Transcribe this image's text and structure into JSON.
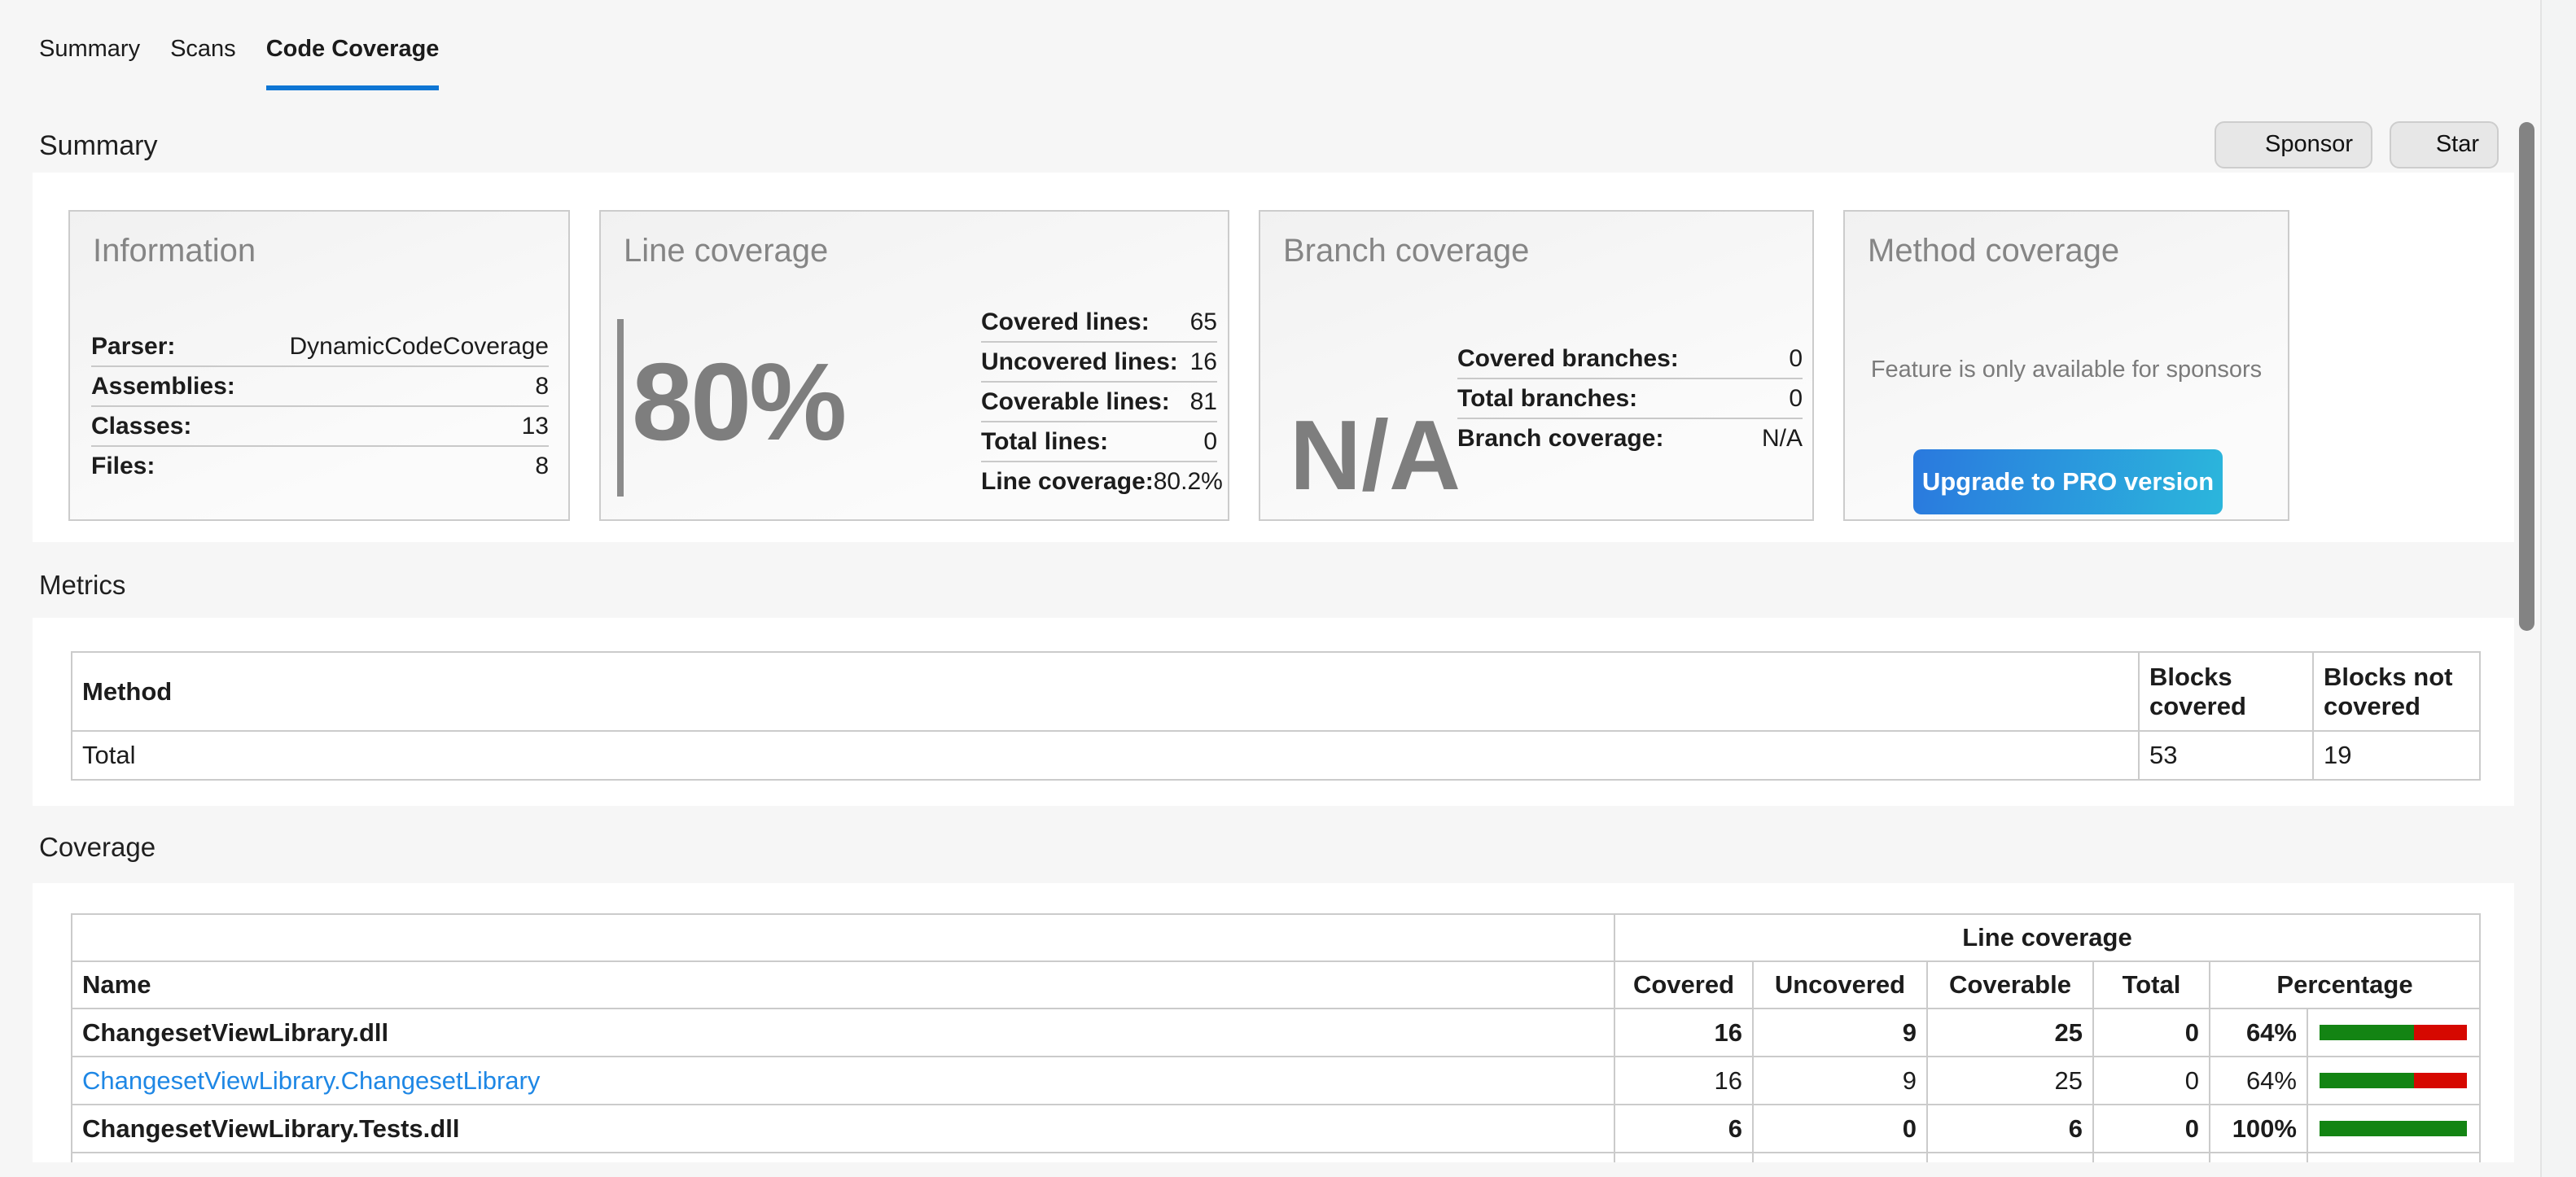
{
  "tabs": {
    "items": [
      {
        "label": "Summary",
        "active": false
      },
      {
        "label": "Scans",
        "active": false
      },
      {
        "label": "Code Coverage",
        "active": true
      }
    ]
  },
  "toolbar": {
    "title": "Summary",
    "sponsor_label": "Sponsor",
    "star_label": "Star"
  },
  "cards": {
    "information": {
      "title": "Information",
      "rows": [
        {
          "label": "Parser:",
          "value": "DynamicCodeCoverage"
        },
        {
          "label": "Assemblies:",
          "value": "8"
        },
        {
          "label": "Classes:",
          "value": "13"
        },
        {
          "label": "Files:",
          "value": "8"
        }
      ]
    },
    "line_coverage": {
      "title": "Line coverage",
      "big_value": "80%",
      "rows": [
        {
          "label": "Covered lines:",
          "value": "65"
        },
        {
          "label": "Uncovered lines:",
          "value": "16"
        },
        {
          "label": "Coverable lines:",
          "value": "81"
        },
        {
          "label": "Total lines:",
          "value": "0"
        },
        {
          "label": "Line coverage:",
          "value": "80.2%"
        }
      ]
    },
    "branch_coverage": {
      "title": "Branch coverage",
      "big_value": "N/A",
      "rows": [
        {
          "label": "Covered branches:",
          "value": "0"
        },
        {
          "label": "Total branches:",
          "value": "0"
        },
        {
          "label": "Branch coverage:",
          "value": "N/A"
        }
      ]
    },
    "method_coverage": {
      "title": "Method coverage",
      "note": "Feature is only available for sponsors",
      "upgrade_label": "Upgrade to PRO version"
    }
  },
  "metrics": {
    "heading": "Metrics",
    "columns": [
      "Method",
      "Blocks covered",
      "Blocks not covered"
    ],
    "rows": [
      {
        "method": "Total",
        "blocks_covered": "53",
        "blocks_not_covered": "19"
      }
    ]
  },
  "coverage": {
    "heading": "Coverage",
    "group_header": "Line coverage",
    "columns": [
      "Name",
      "Covered",
      "Uncovered",
      "Coverable",
      "Total",
      "Percentage"
    ],
    "rows": [
      {
        "name": "ChangesetViewLibrary.dll",
        "bold": true,
        "link": false,
        "covered": "16",
        "uncovered": "9",
        "coverable": "25",
        "total": "0",
        "percentage": "64%",
        "percent": 64
      },
      {
        "name": "ChangesetViewLibrary.ChangesetLibrary",
        "bold": false,
        "link": true,
        "covered": "16",
        "uncovered": "9",
        "coverable": "25",
        "total": "0",
        "percentage": "64%",
        "percent": 64
      },
      {
        "name": "ChangesetViewLibrary.Tests.dll",
        "bold": true,
        "link": false,
        "covered": "6",
        "uncovered": "0",
        "coverable": "6",
        "total": "0",
        "percentage": "100%",
        "percent": 100
      }
    ]
  },
  "colors": {
    "accent_blue": "#0e76d4",
    "link_blue": "#1e87e5",
    "bar_green": "#138413",
    "bar_red": "#d60800",
    "button_gradient_start": "#2a79de",
    "button_gradient_end": "#2bb6dc",
    "big_number_gray": "#7e7e7e"
  }
}
